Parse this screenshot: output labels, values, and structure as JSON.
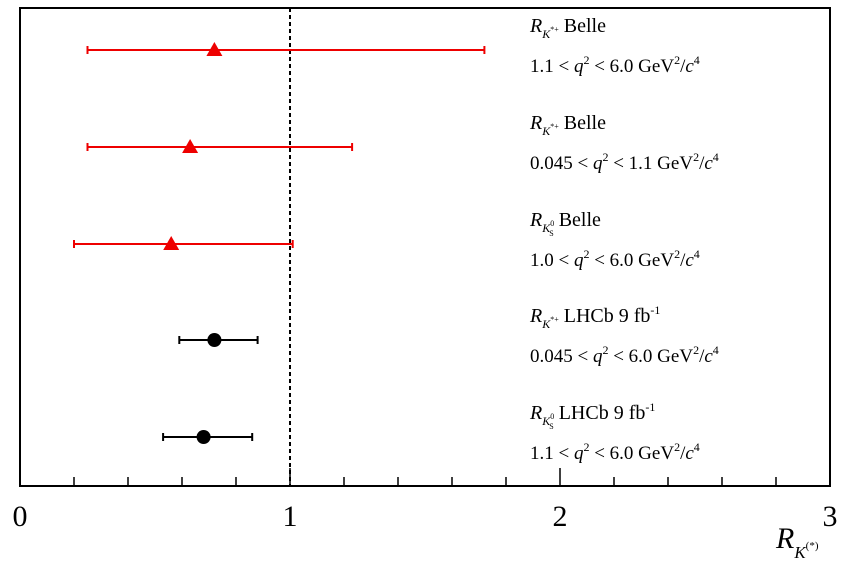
{
  "chart_data": {
    "type": "scatter",
    "title": "",
    "xlabel": {
      "main": "R",
      "sub": "K",
      "sup": "(*)"
    },
    "ylabel": "",
    "xlim": [
      0,
      3
    ],
    "x_ticks": [
      "0",
      "1",
      "2",
      "3"
    ],
    "reference_line": {
      "x": 1,
      "style": "dotted"
    },
    "colors": {
      "belle": "#ee0000",
      "lhcb": "#000000"
    },
    "series": [
      {
        "marker": "triangle",
        "color": "#ee0000",
        "value": 0.72,
        "err_low": 0.25,
        "err_high": 1.72,
        "label": {
          "sub": "K",
          "subsup": "*+",
          "experiment": "Belle",
          "lumi": "",
          "range_lo": "1.1",
          "range_hi": "6.0"
        }
      },
      {
        "marker": "triangle",
        "color": "#ee0000",
        "value": 0.63,
        "err_low": 0.25,
        "err_high": 1.23,
        "label": {
          "sub": "K",
          "subsup": "*+",
          "experiment": "Belle",
          "lumi": "",
          "range_lo": "0.045",
          "range_hi": "1.1"
        }
      },
      {
        "marker": "triangle",
        "color": "#ee0000",
        "value": 0.56,
        "err_low": 0.2,
        "err_high": 1.01,
        "label": {
          "sub": "K",
          "subsup": "0",
          "subsub": "S",
          "experiment": "Belle",
          "lumi": "",
          "range_lo": "1.0",
          "range_hi": "6.0"
        }
      },
      {
        "marker": "circle",
        "color": "#000000",
        "value": 0.72,
        "err_low": 0.59,
        "err_high": 0.88,
        "label": {
          "sub": "K",
          "subsup": "*+",
          "experiment": "LHCb 9 fb",
          "lumi": "-1",
          "range_lo": "0.045",
          "range_hi": "6.0"
        }
      },
      {
        "marker": "circle",
        "color": "#000000",
        "value": 0.68,
        "err_low": 0.53,
        "err_high": 0.86,
        "label": {
          "sub": "K",
          "subsup": "0",
          "subsub": "S",
          "experiment": "LHCb 9 fb",
          "lumi": "-1",
          "range_lo": "1.1",
          "range_hi": "6.0"
        }
      }
    ],
    "range_text": {
      "q": "q",
      "q_exp": "2",
      "unit": "GeV",
      "unit_exp": "2",
      "c": "c",
      "c_exp": "4"
    }
  }
}
